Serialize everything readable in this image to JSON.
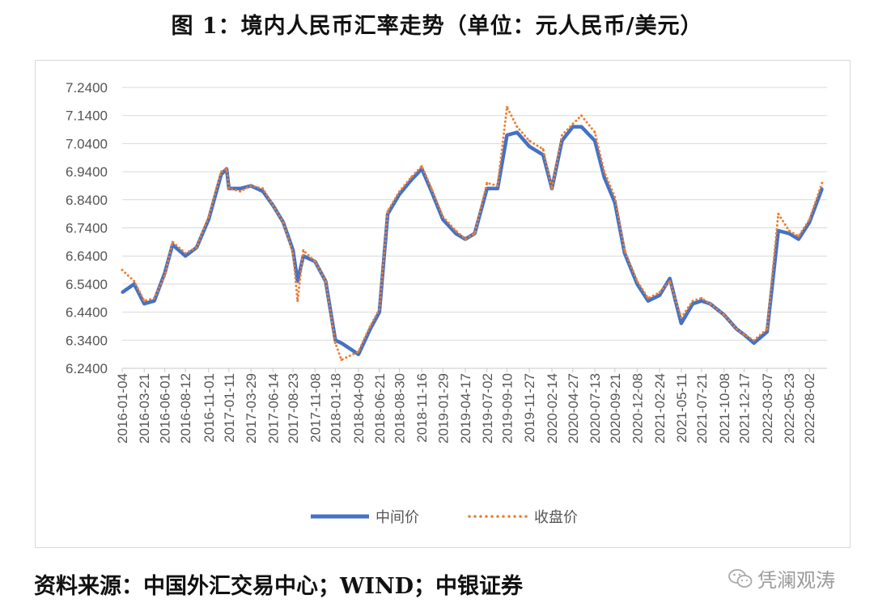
{
  "title": "图 1：境内人民币汇率走势（单位：元人民币/美元）",
  "source": "资料来源：中国外汇交易中心；WIND；中银证券",
  "watermark": {
    "text": "凭澜观涛",
    "icon": "wechat-icon"
  },
  "chart_data": {
    "type": "line",
    "ylim": [
      6.24,
      7.24
    ],
    "yticks": [
      "7.2400",
      "7.1400",
      "7.0400",
      "6.9400",
      "6.8400",
      "6.7400",
      "6.6400",
      "6.5400",
      "6.4400",
      "6.3400",
      "6.2400"
    ],
    "xticks": [
      "2016-01-04",
      "2016-03-21",
      "2016-06-01",
      "2016-08-12",
      "2016-11-01",
      "2017-01-11",
      "2017-03-29",
      "2017-06-14",
      "2017-08-23",
      "2017-11-08",
      "2018-01-18",
      "2018-04-09",
      "2018-06-21",
      "2018-08-30",
      "2018-11-16",
      "2019-01-29",
      "2019-04-17",
      "2019-07-02",
      "2019-09-10",
      "2019-11-27",
      "2020-02-14",
      "2020-04-27",
      "2020-07-13",
      "2020-09-21",
      "2020-12-08",
      "2021-02-24",
      "2021-05-11",
      "2021-07-21",
      "2021-10-08",
      "2021-12-17",
      "2022-03-07",
      "2022-05-23",
      "2022-08-02"
    ],
    "grid": true,
    "legend_position": "bottom",
    "series": [
      {
        "name": "中间价",
        "style": "solid",
        "color": "#4472C4",
        "x": [
          "2016-01-04",
          "2016-02-15",
          "2016-03-21",
          "2016-04-25",
          "2016-06-01",
          "2016-06-28",
          "2016-08-12",
          "2016-09-20",
          "2016-11-01",
          "2016-12-15",
          "2017-01-03",
          "2017-01-11",
          "2017-02-20",
          "2017-03-29",
          "2017-05-10",
          "2017-06-14",
          "2017-07-20",
          "2017-08-23",
          "2017-09-08",
          "2017-09-28",
          "2017-11-08",
          "2017-12-15",
          "2018-01-18",
          "2018-02-08",
          "2018-04-09",
          "2018-05-20",
          "2018-06-21",
          "2018-07-20",
          "2018-08-30",
          "2018-10-10",
          "2018-11-16",
          "2018-12-20",
          "2019-01-29",
          "2019-03-15",
          "2019-04-17",
          "2019-05-20",
          "2019-07-02",
          "2019-08-08",
          "2019-09-10",
          "2019-10-15",
          "2019-11-27",
          "2020-01-14",
          "2020-02-14",
          "2020-03-20",
          "2020-04-27",
          "2020-05-27",
          "2020-07-13",
          "2020-08-15",
          "2020-09-21",
          "2020-10-25",
          "2020-12-08",
          "2021-01-15",
          "2021-02-24",
          "2021-04-01",
          "2021-05-11",
          "2021-06-20",
          "2021-07-21",
          "2021-08-20",
          "2021-10-08",
          "2021-11-20",
          "2021-12-17",
          "2022-01-20",
          "2022-03-07",
          "2022-04-15",
          "2022-05-23",
          "2022-06-25",
          "2022-08-02",
          "2022-09-15"
        ],
        "y": [
          6.51,
          6.54,
          6.47,
          6.48,
          6.58,
          6.68,
          6.64,
          6.67,
          6.77,
          6.93,
          6.95,
          6.88,
          6.88,
          6.89,
          6.87,
          6.82,
          6.76,
          6.66,
          6.55,
          6.64,
          6.62,
          6.55,
          6.34,
          6.33,
          6.29,
          6.38,
          6.44,
          6.79,
          6.86,
          6.91,
          6.95,
          6.87,
          6.77,
          6.72,
          6.7,
          6.72,
          6.88,
          6.88,
          7.07,
          7.08,
          7.03,
          7.0,
          6.88,
          7.05,
          7.1,
          7.1,
          7.05,
          6.92,
          6.83,
          6.65,
          6.54,
          6.48,
          6.5,
          6.56,
          6.4,
          6.47,
          6.48,
          6.47,
          6.43,
          6.38,
          6.36,
          6.33,
          6.37,
          6.73,
          6.72,
          6.7,
          6.76,
          6.88
        ]
      },
      {
        "name": "收盘价",
        "style": "dotted",
        "color": "#ED7D31",
        "x": [
          "2016-01-04",
          "2016-02-15",
          "2016-03-21",
          "2016-04-25",
          "2016-06-01",
          "2016-06-28",
          "2016-08-12",
          "2016-09-20",
          "2016-11-01",
          "2016-12-15",
          "2017-01-03",
          "2017-01-11",
          "2017-02-20",
          "2017-03-29",
          "2017-05-10",
          "2017-06-14",
          "2017-07-20",
          "2017-08-23",
          "2017-09-08",
          "2017-09-28",
          "2017-11-08",
          "2017-12-15",
          "2018-01-18",
          "2018-02-08",
          "2018-04-09",
          "2018-05-20",
          "2018-06-21",
          "2018-07-20",
          "2018-08-30",
          "2018-10-10",
          "2018-11-16",
          "2018-12-20",
          "2019-01-29",
          "2019-03-15",
          "2019-04-17",
          "2019-05-20",
          "2019-07-02",
          "2019-08-08",
          "2019-09-10",
          "2019-10-15",
          "2019-11-27",
          "2020-01-14",
          "2020-02-14",
          "2020-03-20",
          "2020-04-27",
          "2020-05-27",
          "2020-07-13",
          "2020-08-15",
          "2020-09-21",
          "2020-10-25",
          "2020-12-08",
          "2021-01-15",
          "2021-02-24",
          "2021-04-01",
          "2021-05-11",
          "2021-06-20",
          "2021-07-21",
          "2021-08-20",
          "2021-10-08",
          "2021-11-20",
          "2021-12-17",
          "2022-01-20",
          "2022-03-07",
          "2022-04-15",
          "2022-05-23",
          "2022-06-25",
          "2022-08-02",
          "2022-09-15"
        ],
        "y": [
          6.59,
          6.55,
          6.48,
          6.49,
          6.57,
          6.69,
          6.65,
          6.67,
          6.78,
          6.94,
          6.95,
          6.88,
          6.87,
          6.89,
          6.88,
          6.82,
          6.76,
          6.65,
          6.48,
          6.66,
          6.62,
          6.55,
          6.33,
          6.27,
          6.3,
          6.39,
          6.45,
          6.8,
          6.87,
          6.92,
          6.96,
          6.88,
          6.78,
          6.73,
          6.7,
          6.72,
          6.9,
          6.89,
          7.17,
          7.1,
          7.05,
          7.02,
          6.88,
          7.07,
          7.11,
          7.14,
          7.08,
          6.94,
          6.85,
          6.66,
          6.55,
          6.49,
          6.51,
          6.55,
          6.42,
          6.48,
          6.49,
          6.47,
          6.43,
          6.38,
          6.36,
          6.34,
          6.38,
          6.79,
          6.73,
          6.71,
          6.77,
          6.9
        ]
      }
    ]
  }
}
